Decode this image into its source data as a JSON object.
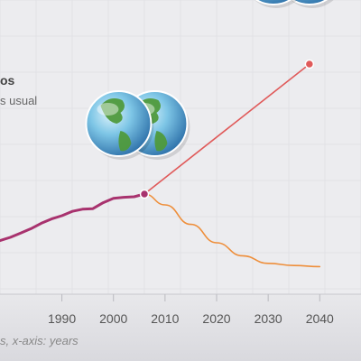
{
  "chart_data": {
    "type": "line",
    "x_ticks": [
      "1990",
      "2000",
      "2010",
      "2020",
      "2030",
      "2040"
    ],
    "xlim": [
      1978,
      2048
    ],
    "legend_title_fragment": "os",
    "legend_sub_fragment": "s usual",
    "axis_note_fragment": "s, x-axis: years",
    "series": [
      {
        "key": "historical",
        "color": "#a8326e",
        "x": [
          1978,
          1980,
          1982,
          1984,
          1986,
          1988,
          1990,
          1992,
          1994,
          1996,
          1998,
          2000,
          2002,
          2004,
          2006
        ],
        "y": [
          0.17,
          0.2,
          0.24,
          0.28,
          0.33,
          0.37,
          0.4,
          0.44,
          0.46,
          0.465,
          0.52,
          0.56,
          0.57,
          0.575,
          0.6
        ]
      },
      {
        "key": "upper",
        "color": "#e05a5a",
        "x": [
          2006,
          2038
        ],
        "y": [
          0.6,
          1.8
        ]
      },
      {
        "key": "lower",
        "color": "#ee8e3a",
        "x": [
          2006,
          2010,
          2015,
          2020,
          2025,
          2030,
          2035,
          2040
        ],
        "y": [
          0.6,
          0.5,
          0.32,
          0.15,
          0.03,
          -0.04,
          -0.06,
          -0.07
        ]
      }
    ],
    "markers": [
      {
        "x": 2006,
        "y": 0.6,
        "color": "#a8326e"
      },
      {
        "x": 2038,
        "y": 1.8,
        "color": "#e05a5a"
      }
    ],
    "globes": [
      {
        "x": 2001,
        "y": 1.25
      },
      {
        "x": 2031,
        "y": 2.65
      }
    ]
  }
}
